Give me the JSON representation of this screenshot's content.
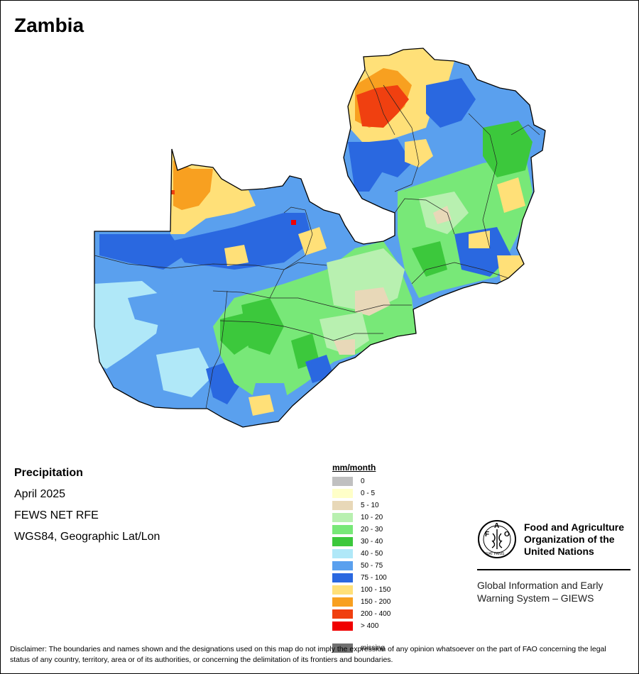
{
  "title": "Zambia",
  "info": {
    "variable": "Precipitation",
    "period": "April 2025",
    "source": "FEWS NET RFE",
    "projection": "WGS84, Geographic Lat/Lon"
  },
  "legend": {
    "unit": "mm/month",
    "items": [
      {
        "label": "0",
        "color": "#c0c0c0"
      },
      {
        "label": "0 - 5",
        "color": "#ffffc8"
      },
      {
        "label": "5 - 10",
        "color": "#e8d8b8"
      },
      {
        "label": "10 - 20",
        "color": "#b8f0b0"
      },
      {
        "label": "20 - 30",
        "color": "#78e878"
      },
      {
        "label": "30 - 40",
        "color": "#3cc83c"
      },
      {
        "label": "40 - 50",
        "color": "#b0e8f8"
      },
      {
        "label": "50 - 75",
        "color": "#5aa0ee"
      },
      {
        "label": "75 - 100",
        "color": "#2a68e0"
      },
      {
        "label": "100 - 150",
        "color": "#ffe078"
      },
      {
        "label": "150 - 200",
        "color": "#f8a020"
      },
      {
        "label": "200 - 400",
        "color": "#f04010"
      },
      {
        "label": "> 400",
        "color": "#f00000"
      }
    ],
    "missing": {
      "label": "missing",
      "color": "#707070"
    }
  },
  "logo": {
    "name_line1": "Food and Agriculture",
    "name_line2": "Organization of the",
    "name_line3": "United Nations",
    "fao_letters": "FAO",
    "fiat_panis": "FIAT PANIS",
    "giews_line1": "Global Information and Early",
    "giews_line2": "Warning System – GIEWS"
  },
  "disclaimer": "Disclaimer: The boundaries and names shown and the designations used on this map do not imply the expression of any opinion whatsoever on the part of FAO concerning the legal status of any country, territory, area or of its authorities, or concerning the delimitation of its frontiers and boundaries."
}
